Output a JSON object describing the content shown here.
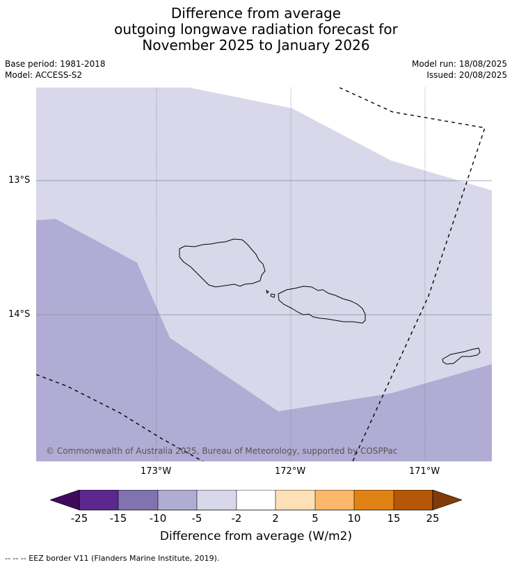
{
  "title": {
    "line1": "Difference from average",
    "line2": "outgoing longwave radiation forecast for",
    "line3": "November 2025 to January 2026"
  },
  "meta": {
    "base_period": "Base period: 1981-2018",
    "model": "Model: ACCESS-S2",
    "model_run": "Model run: 18/08/2025",
    "issued": "Issued: 20/08/2025"
  },
  "map": {
    "lat_labels": [
      "13°S",
      "14°S"
    ],
    "lon_labels": [
      "173°W",
      "172°W",
      "171°W"
    ],
    "copyright": "© Commonwealth of Australia 2025, Bureau of Meteorology, supported by COSPPac",
    "colors": {
      "band_-5_-2": "#d8d8ea",
      "band_-10_-5": "#b1acd3",
      "coastline": "#000000",
      "eez": "#000000"
    }
  },
  "colorbar": {
    "label": "Difference from average (W/m2)",
    "ticks": [
      "-25",
      "-15",
      "-10",
      "-5",
      "-2",
      "2",
      "5",
      "10",
      "15",
      "25"
    ],
    "colors": [
      "#3f0a5e",
      "#5d2790",
      "#8073b0",
      "#b1acd3",
      "#d8d8ea",
      "#ffffff",
      "#fde0b6",
      "#fbb86a",
      "#e08314",
      "#b45808",
      "#7f3b08"
    ]
  },
  "footer": {
    "legend": "--  --  -- EEZ border V11 (Flanders Marine Institute, 2019)."
  }
}
